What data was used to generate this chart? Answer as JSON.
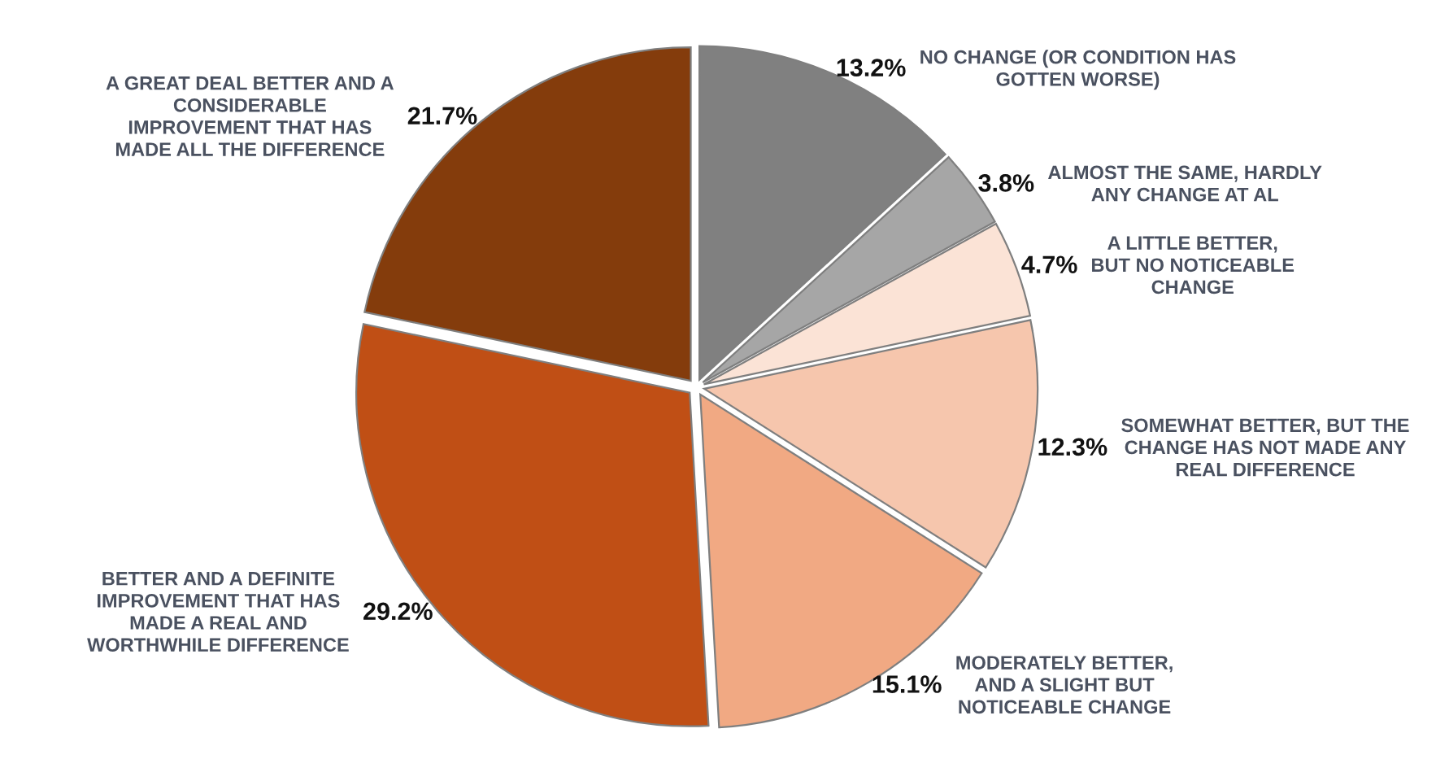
{
  "chart_data": {
    "type": "pie",
    "categories": [
      "NO CHANGE (OR CONDITION HAS\nGOTTEN WORSE)",
      "ALMOST THE SAME, HARDLY\nANY CHANGE AT AL",
      "A LITTLE BETTER,\nBUT NO NOTICEABLE\nCHANGE",
      "SOMEWHAT BETTER, BUT THE\nCHANGE HAS NOT MADE ANY\nREAL DIFFERENCE",
      "MODERATELY BETTER,\nAND A SLIGHT BUT\nNOTICEABLE CHANGE",
      "BETTER AND A DEFINITE\nIMPROVEMENT THAT HAS\nMADE A REAL AND\nWORTHWHILE DIFFERENCE",
      "A GREAT DEAL BETTER AND A\nCONSIDERABLE\nIMPROVEMENT THAT HAS\nMADE ALL THE DIFFERENCE"
    ],
    "values": [
      13.2,
      3.8,
      4.7,
      12.3,
      15.1,
      29.2,
      21.7
    ],
    "value_labels": [
      "13.2%",
      "3.8%",
      "4.7%",
      "12.3%",
      "15.1%",
      "29.2%",
      "21.7%"
    ],
    "colors": [
      "#808080",
      "#a6a6a6",
      "#fbe3d6",
      "#f6c6ad",
      "#f1a983",
      "#c04f15",
      "#843c0c"
    ]
  }
}
